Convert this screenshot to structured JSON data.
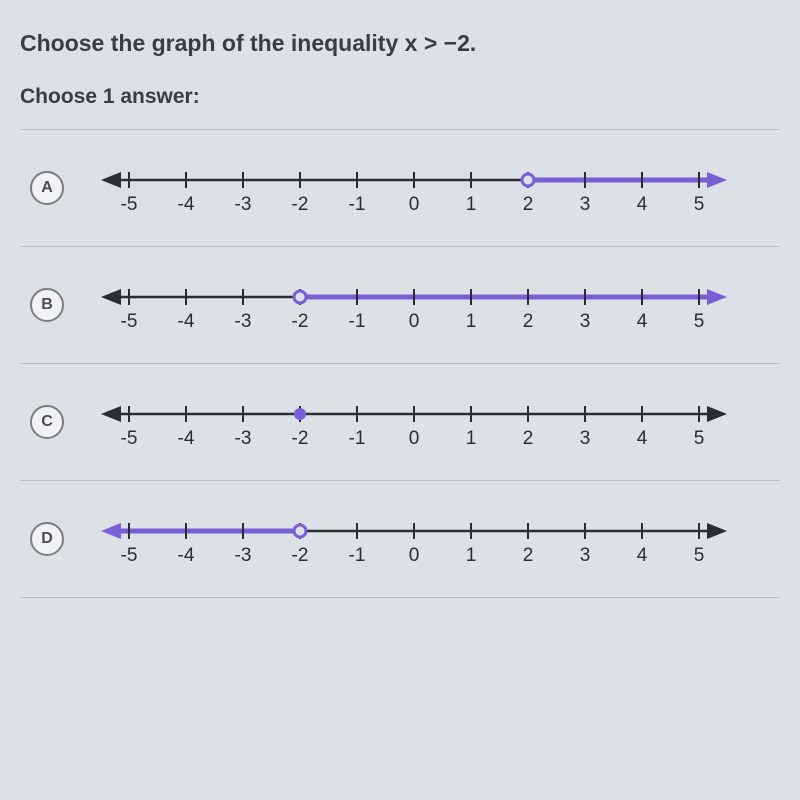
{
  "question": "Choose the graph of the inequality x > −2.",
  "instruction": "Choose 1 answer:",
  "axis": {
    "min": -5,
    "max": 5,
    "ticks": [
      -5,
      -4,
      -3,
      -2,
      -1,
      0,
      1,
      2,
      3,
      4,
      5
    ],
    "axis_color": "#2a2d33",
    "highlight_color": "#7a5ed6",
    "bg_color": "#dce1e8",
    "tick_font_size": 19
  },
  "answers": [
    {
      "letter": "A",
      "point_value": 2,
      "point_style": "open",
      "highlight_dir": "right",
      "highlight_arrow": true
    },
    {
      "letter": "B",
      "point_value": -2,
      "point_style": "open",
      "highlight_dir": "right",
      "highlight_arrow": true
    },
    {
      "letter": "C",
      "point_value": -2,
      "point_style": "closed",
      "highlight_dir": "none",
      "highlight_arrow": false
    },
    {
      "letter": "D",
      "point_value": -2,
      "point_style": "open",
      "highlight_dir": "left",
      "highlight_arrow": true
    }
  ]
}
